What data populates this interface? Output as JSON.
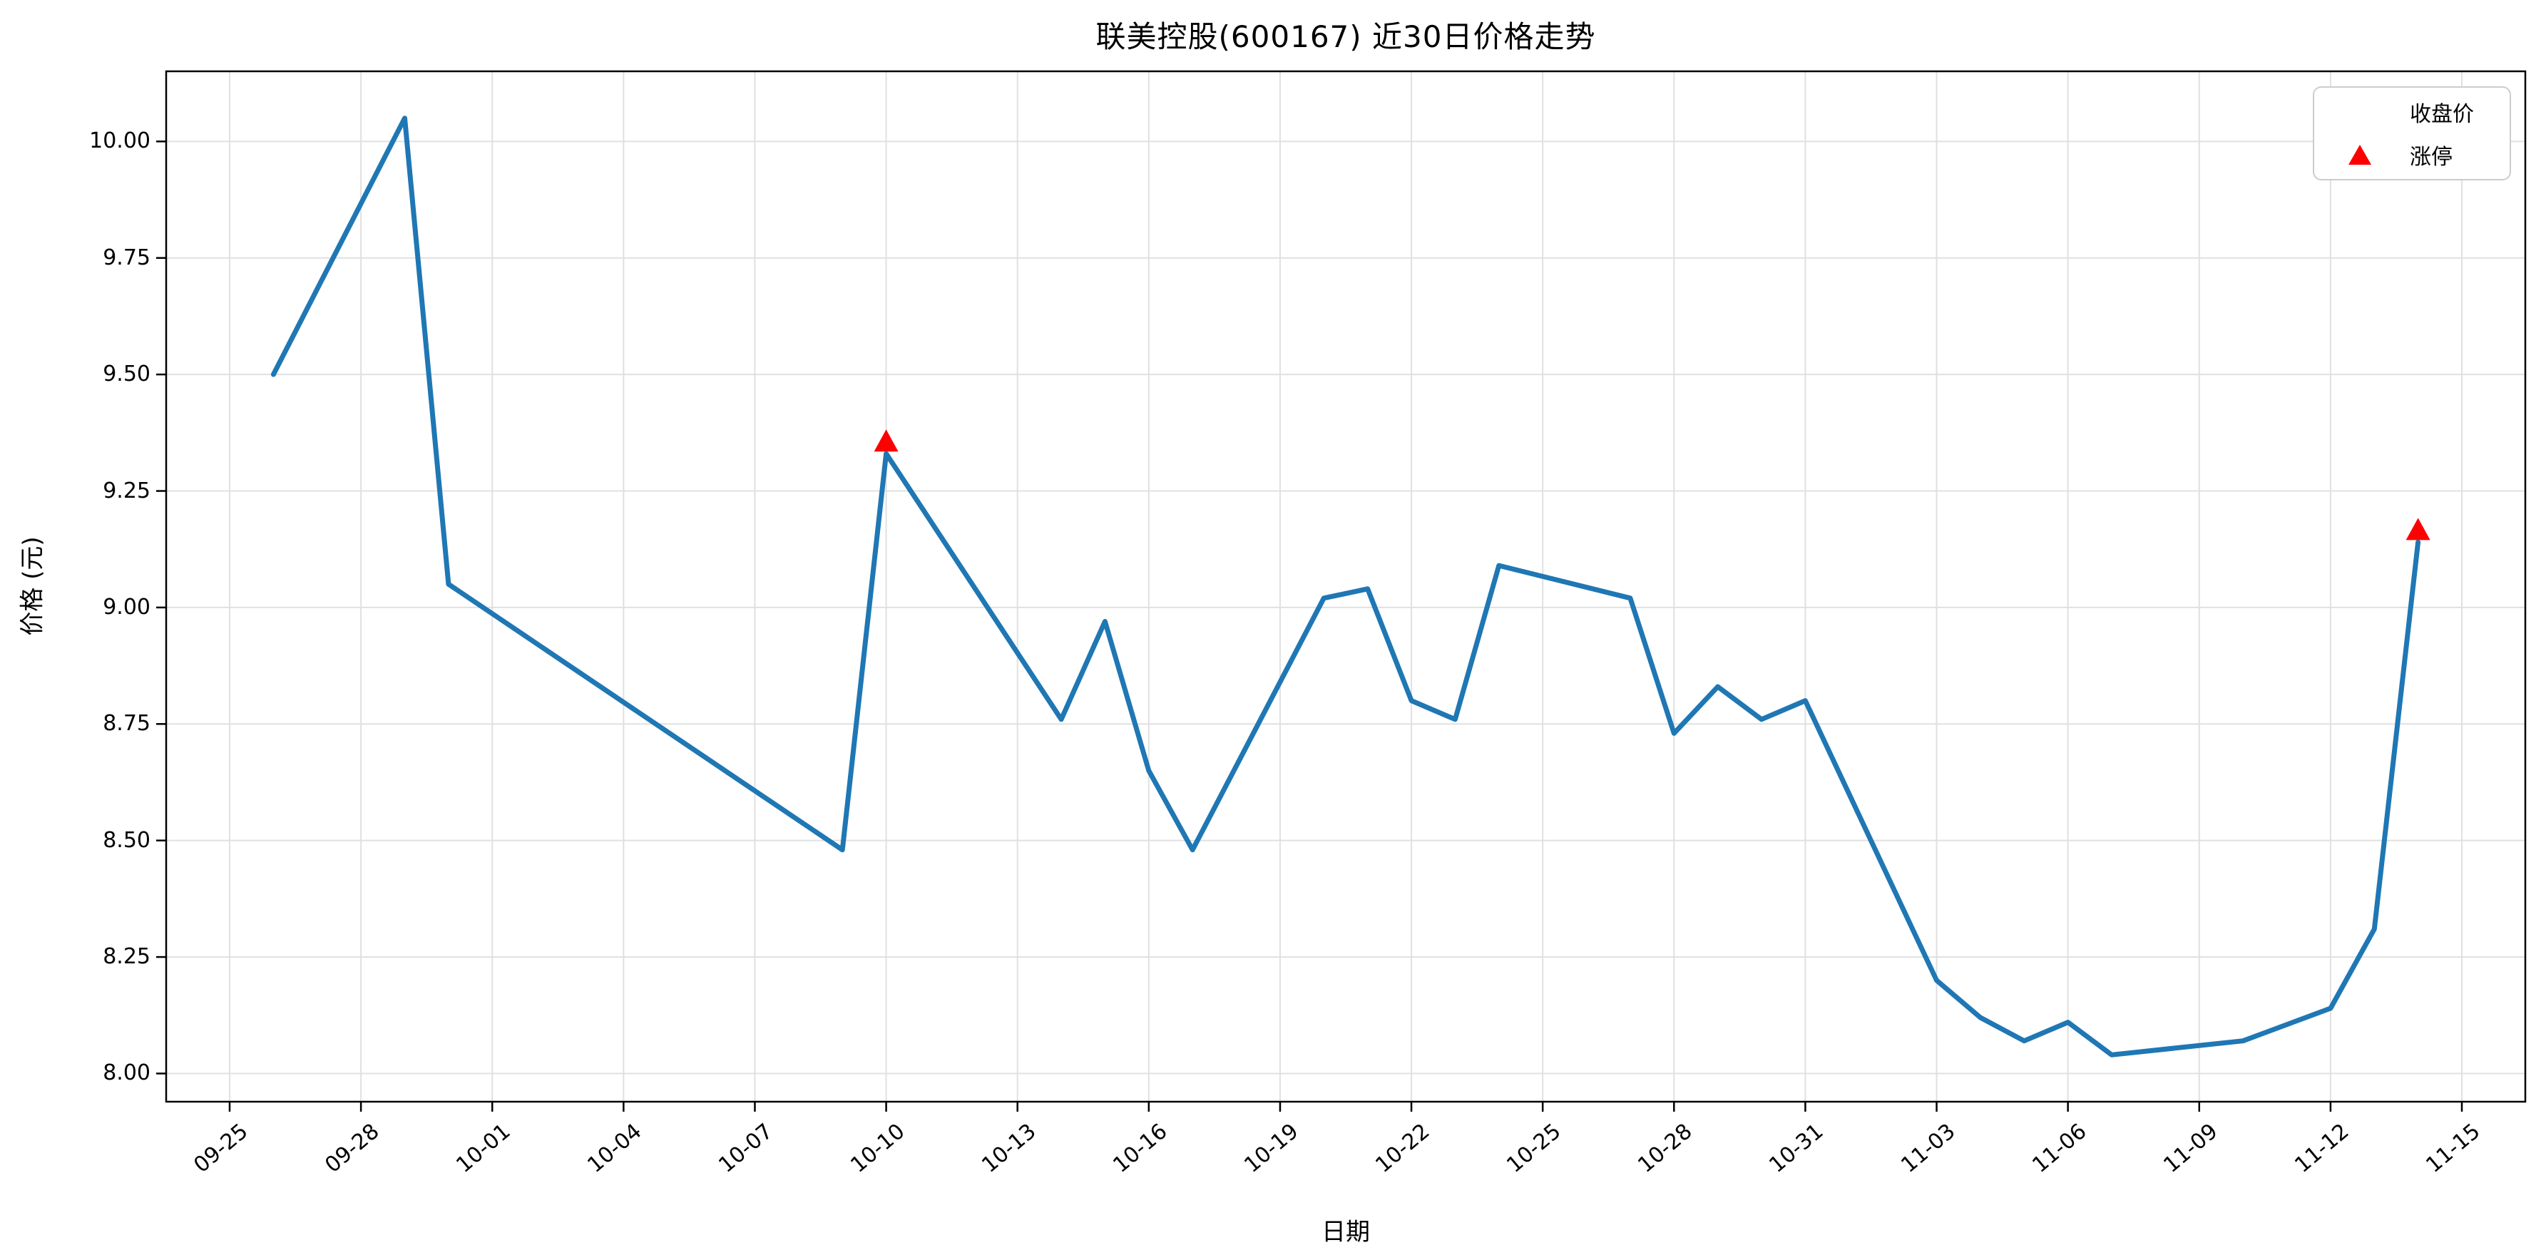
{
  "chart_data": {
    "type": "line",
    "title": "联美控股(600167) 近30日价格走势",
    "xlabel": "日期",
    "ylabel": "价格 (元)",
    "legend": {
      "close_label": "收盘价",
      "limit_up_label": "涨停",
      "position": "upper right"
    },
    "grid": true,
    "line_color": "#1f77b4",
    "marker_color": "#ff0000",
    "x_tick_labels": [
      "09-25",
      "09-28",
      "10-01",
      "10-04",
      "10-07",
      "10-10",
      "10-13",
      "10-16",
      "10-19",
      "10-22",
      "10-25",
      "10-28",
      "10-31",
      "11-03",
      "11-06",
      "11-09",
      "11-12",
      "11-15"
    ],
    "y_tick_labels": [
      "8.00",
      "8.25",
      "8.50",
      "8.75",
      "9.00",
      "9.25",
      "9.50",
      "9.75",
      "10.00"
    ],
    "ylim": [
      7.9395,
      10.1505
    ],
    "xlim_days_from_first_tick": [
      -1.45,
      52.45
    ],
    "series": [
      {
        "name": "收盘价",
        "points": [
          {
            "date": "09-26",
            "close": 9.5
          },
          {
            "date": "09-29",
            "close": 10.05
          },
          {
            "date": "09-30",
            "close": 9.05
          },
          {
            "date": "10-09",
            "close": 8.48
          },
          {
            "date": "10-10",
            "close": 9.33
          },
          {
            "date": "10-14",
            "close": 8.76
          },
          {
            "date": "10-15",
            "close": 8.97
          },
          {
            "date": "10-16",
            "close": 8.65
          },
          {
            "date": "10-17",
            "close": 8.48
          },
          {
            "date": "10-20",
            "close": 9.02
          },
          {
            "date": "10-21",
            "close": 9.04
          },
          {
            "date": "10-22",
            "close": 8.8
          },
          {
            "date": "10-23",
            "close": 8.76
          },
          {
            "date": "10-24",
            "close": 9.09
          },
          {
            "date": "10-27",
            "close": 9.02
          },
          {
            "date": "10-28",
            "close": 8.73
          },
          {
            "date": "10-29",
            "close": 8.83
          },
          {
            "date": "10-30",
            "close": 8.76
          },
          {
            "date": "10-31",
            "close": 8.8
          },
          {
            "date": "11-03",
            "close": 8.2
          },
          {
            "date": "11-04",
            "close": 8.12
          },
          {
            "date": "11-05",
            "close": 8.07
          },
          {
            "date": "11-06",
            "close": 8.11
          },
          {
            "date": "11-07",
            "close": 8.04
          },
          {
            "date": "11-10",
            "close": 8.07
          },
          {
            "date": "11-12",
            "close": 8.14
          },
          {
            "date": "11-13",
            "close": 8.31
          },
          {
            "date": "11-14",
            "close": 9.14
          }
        ]
      }
    ],
    "limit_up_dates": [
      "10-10",
      "11-14"
    ]
  },
  "colors": {
    "line": "#1f77b4",
    "limit_up_marker": "#ff0000",
    "grid": "#e0e0e0",
    "frame": "#000000",
    "background": "#ffffff",
    "legend_border": "#cccccc"
  }
}
